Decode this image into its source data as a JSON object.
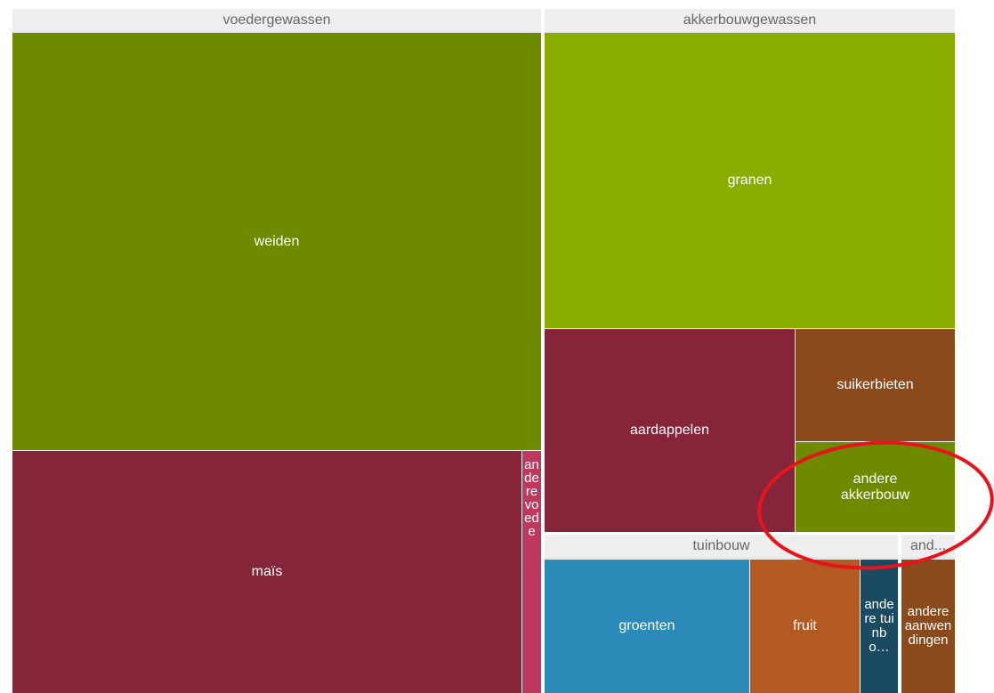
{
  "groups": [
    {
      "label": "voedergewassen",
      "items": [
        "weiden",
        "maïs",
        "andere voede"
      ]
    },
    {
      "label": "akkerbouwgewassen",
      "items": [
        "granen",
        "aardappelen",
        "suikerbieten",
        "andere akkerbouw"
      ]
    },
    {
      "label": "tuinbouw",
      "items": [
        "groenten",
        "fruit",
        "andere tuinbo…"
      ]
    },
    {
      "label": "and...",
      "items": [
        "andere aanwendingen"
      ]
    }
  ]
}
